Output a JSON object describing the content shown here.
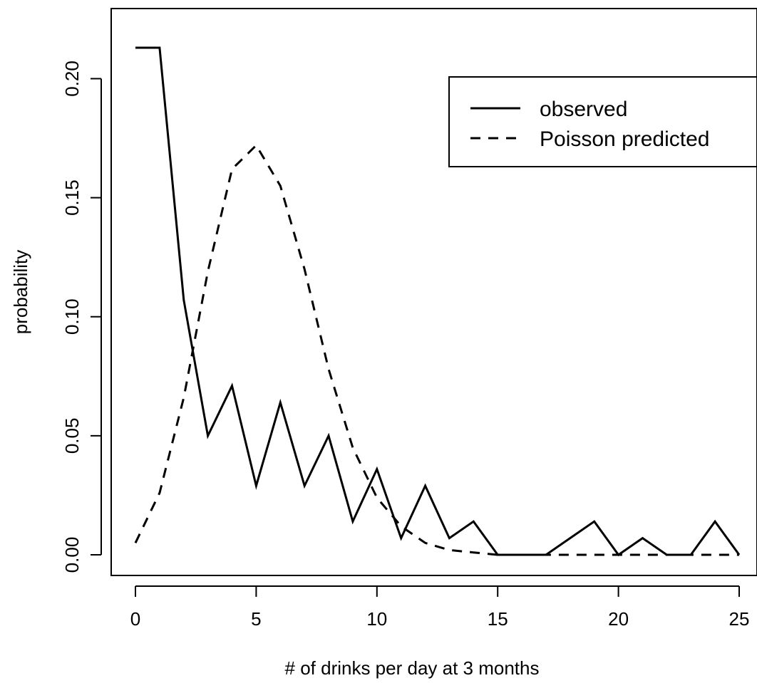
{
  "chart_data": {
    "type": "line",
    "title": "",
    "xlabel": "# of drinks per day at 3 months",
    "ylabel": "probability",
    "xlim": [
      0,
      25
    ],
    "ylim": [
      0,
      0.22
    ],
    "xticks": [
      0,
      5,
      10,
      15,
      20,
      25
    ],
    "xtick_labels": [
      "0",
      "5",
      "10",
      "15",
      "20",
      "25"
    ],
    "yticks": [
      0,
      0.05,
      0.1,
      0.15,
      0.2
    ],
    "ytick_labels": [
      "0.00",
      "0.05",
      "0.10",
      "0.15",
      "0.20"
    ],
    "grid": false,
    "legend_position": "top-right",
    "x": [
      0,
      1,
      2,
      3,
      4,
      5,
      6,
      7,
      8,
      9,
      10,
      11,
      12,
      13,
      14,
      15,
      16,
      17,
      18,
      19,
      20,
      21,
      22,
      23,
      24,
      25
    ],
    "series": [
      {
        "name": "observed",
        "style": "solid",
        "color": "#000000",
        "values": [
          0.213,
          0.213,
          0.107,
          0.05,
          0.071,
          0.029,
          0.064,
          0.029,
          0.05,
          0.014,
          0.036,
          0.007,
          0.029,
          0.007,
          0.014,
          0.0,
          0.0,
          0.0,
          0.007,
          0.014,
          0.0,
          0.007,
          0.0,
          0.0,
          0.014,
          0.0
        ]
      },
      {
        "name": "Poisson predicted",
        "style": "dashed",
        "color": "#000000",
        "values": [
          0.005,
          0.026,
          0.066,
          0.119,
          0.162,
          0.172,
          0.155,
          0.12,
          0.078,
          0.045,
          0.024,
          0.012,
          0.005,
          0.002,
          0.001,
          0.0,
          0.0,
          0.0,
          0.0,
          0.0,
          0.0,
          0.0,
          0.0,
          0.0,
          0.0,
          0.0
        ]
      }
    ]
  }
}
